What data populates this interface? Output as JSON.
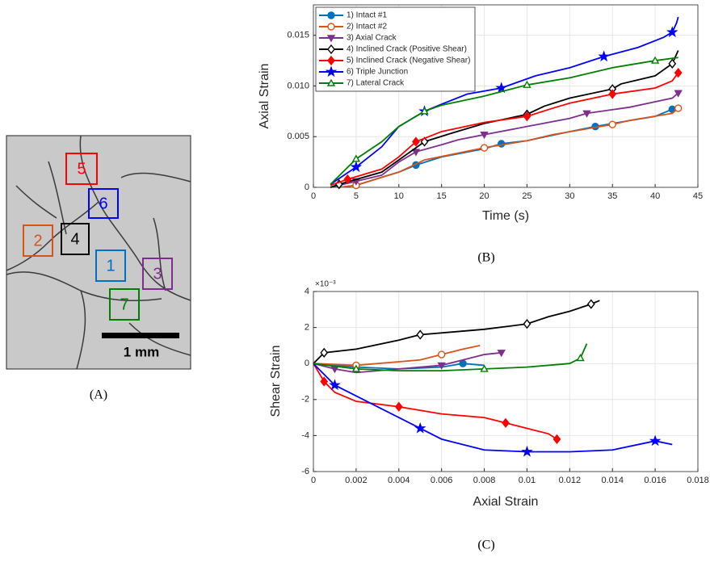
{
  "figure": {
    "panel_labels": [
      "(A)",
      "(B)",
      "(C)"
    ],
    "image": {
      "regions": [
        "5",
        "6",
        "2",
        "4",
        "1",
        "3",
        "7"
      ],
      "scale_bar": "1 mm"
    }
  },
  "chart_data": [
    {
      "type": "line",
      "x_label": "Time (s)",
      "y_label": "Axial Strain",
      "xlim": [
        0,
        45
      ],
      "ylim": [
        0,
        0.018
      ],
      "xticks": [
        0,
        5,
        10,
        15,
        20,
        25,
        30,
        35,
        40,
        45
      ],
      "yticks": [
        0,
        0.005,
        {
          "value": 0.01,
          "label": "0.010"
        },
        0.015
      ],
      "grid": true,
      "legend": "upper left",
      "series": [
        {
          "name": "1) Intact #1",
          "color": "#0072bd",
          "marker": "circle",
          "x": [
            3,
            5,
            8,
            10,
            12,
            15,
            20,
            22,
            25,
            30,
            33,
            35,
            40,
            42,
            42.7
          ],
          "values": [
            0,
            0.0002,
            0.001,
            0.0015,
            0.0022,
            0.003,
            0.0038,
            0.0043,
            0.0046,
            0.0055,
            0.006,
            0.0063,
            0.007,
            0.0077,
            0.008
          ]
        },
        {
          "name": "2) Intact #2",
          "color": "#d95319",
          "marker": "circle-open",
          "x": [
            3,
            5,
            10,
            13,
            20,
            25,
            28,
            35,
            37,
            42,
            42.7
          ],
          "values": [
            0,
            0.0002,
            0.0015,
            0.0027,
            0.0039,
            0.0046,
            0.0052,
            0.0062,
            0.0066,
            0.0073,
            0.0078
          ]
        },
        {
          "name": "3) Axial Crack",
          "color": "#7e2f8e",
          "marker": "triangle-down",
          "x": [
            2,
            5,
            8,
            10,
            12,
            15,
            17,
            20,
            25,
            30,
            32,
            37,
            42,
            42.7
          ],
          "values": [
            0,
            0.0006,
            0.0012,
            0.0025,
            0.0035,
            0.0042,
            0.0047,
            0.0052,
            0.006,
            0.0068,
            0.0073,
            0.0079,
            0.0088,
            0.0093
          ]
        },
        {
          "name": "4) Inclined Crack (Positive Shear)",
          "color": "#000000",
          "marker": "diamond-open",
          "x": [
            2,
            3,
            8,
            11,
            13,
            16,
            20,
            25,
            27,
            30,
            35,
            36,
            40,
            42,
            42.7
          ],
          "values": [
            0,
            0.0003,
            0.0015,
            0.0033,
            0.0045,
            0.0053,
            0.0063,
            0.0072,
            0.008,
            0.0088,
            0.0097,
            0.0102,
            0.011,
            0.0122,
            0.0135
          ]
        },
        {
          "name": "5) Inclined Crack (Negative Shear)",
          "color": "#ff0000",
          "marker": "diamond",
          "x": [
            2,
            4,
            8,
            10,
            12,
            15,
            20,
            25,
            28,
            30,
            35,
            40,
            42,
            42.7
          ],
          "values": [
            0.0002,
            0.0008,
            0.0018,
            0.003,
            0.0045,
            0.0055,
            0.0064,
            0.007,
            0.0078,
            0.0083,
            0.0092,
            0.0098,
            0.0105,
            0.0113
          ]
        },
        {
          "name": "6) Triple Junction",
          "color": "#0000ff",
          "marker": "star",
          "x": [
            2,
            5,
            8,
            10,
            13,
            15,
            18,
            22,
            26,
            30,
            34,
            38,
            41,
            42,
            42.5,
            42.7
          ],
          "values": [
            0.0003,
            0.002,
            0.004,
            0.006,
            0.0075,
            0.0082,
            0.0092,
            0.0098,
            0.011,
            0.0118,
            0.0129,
            0.0138,
            0.0148,
            0.0153,
            0.0162,
            0.0168
          ]
        },
        {
          "name": "7) Lateral Crack",
          "color": "#008000",
          "marker": "triangle-open",
          "x": [
            2,
            5,
            8,
            10,
            13,
            15,
            20,
            25,
            30,
            35,
            40,
            42.7
          ],
          "values": [
            0.0003,
            0.0028,
            0.0045,
            0.006,
            0.0075,
            0.0081,
            0.009,
            0.0101,
            0.0108,
            0.0118,
            0.0125,
            0.0128
          ]
        }
      ]
    },
    {
      "type": "line",
      "x_label": "Axial Strain",
      "y_label": "Shear Strain",
      "y_exponent_label": "×10⁻³",
      "xlim": [
        0,
        0.018
      ],
      "ylim": [
        -6,
        4
      ],
      "xticks": [
        0,
        0.002,
        0.004,
        0.006,
        0.008,
        0.01,
        0.012,
        0.014,
        0.016,
        0.018
      ],
      "yticks": [
        -6,
        -4,
        -2,
        0,
        2,
        4
      ],
      "grid": true,
      "series": [
        {
          "color": "#0072bd",
          "marker": "circle",
          "x": [
            0,
            0.002,
            0.004,
            0.006,
            0.007,
            0.008
          ],
          "values": [
            0,
            -0.2,
            -0.3,
            -0.2,
            0,
            -0.1
          ]
        },
        {
          "color": "#d95319",
          "marker": "circle-open",
          "x": [
            0,
            0.002,
            0.004,
            0.005,
            0.006,
            0.007,
            0.0078
          ],
          "values": [
            0,
            -0.1,
            0.1,
            0.2,
            0.5,
            0.8,
            1.0
          ]
        },
        {
          "color": "#7e2f8e",
          "marker": "triangle-down",
          "x": [
            0,
            0.001,
            0.002,
            0.004,
            0.006,
            0.007,
            0.008,
            0.0088
          ],
          "values": [
            0,
            -0.3,
            -0.5,
            -0.3,
            -0.1,
            0.2,
            0.5,
            0.6
          ]
        },
        {
          "color": "#000000",
          "marker": "diamond-open",
          "x": [
            0,
            0.0005,
            0.002,
            0.004,
            0.005,
            0.007,
            0.008,
            0.01,
            0.011,
            0.012,
            0.013,
            0.0134
          ],
          "values": [
            0,
            0.6,
            0.8,
            1.3,
            1.6,
            1.8,
            1.9,
            2.2,
            2.6,
            2.9,
            3.3,
            3.5
          ]
        },
        {
          "color": "#ff0000",
          "marker": "diamond",
          "x": [
            0,
            0.0005,
            0.001,
            0.002,
            0.004,
            0.006,
            0.008,
            0.009,
            0.01,
            0.011,
            0.0114
          ],
          "values": [
            0,
            -1.0,
            -1.6,
            -2.1,
            -2.4,
            -2.8,
            -3.0,
            -3.3,
            -3.6,
            -3.9,
            -4.2
          ]
        },
        {
          "color": "#0000ff",
          "marker": "star",
          "x": [
            0,
            0.001,
            0.002,
            0.004,
            0.005,
            0.006,
            0.008,
            0.01,
            0.012,
            0.014,
            0.016,
            0.0168
          ],
          "values": [
            0,
            -1.2,
            -1.8,
            -3.0,
            -3.6,
            -4.2,
            -4.8,
            -4.9,
            -4.9,
            -4.8,
            -4.3,
            -4.5
          ]
        },
        {
          "color": "#008000",
          "marker": "triangle-open",
          "x": [
            0,
            0.002,
            0.004,
            0.006,
            0.008,
            0.01,
            0.012,
            0.0125,
            0.0128
          ],
          "values": [
            0,
            -0.3,
            -0.4,
            -0.4,
            -0.3,
            -0.2,
            0,
            0.3,
            1.1
          ]
        }
      ]
    }
  ]
}
